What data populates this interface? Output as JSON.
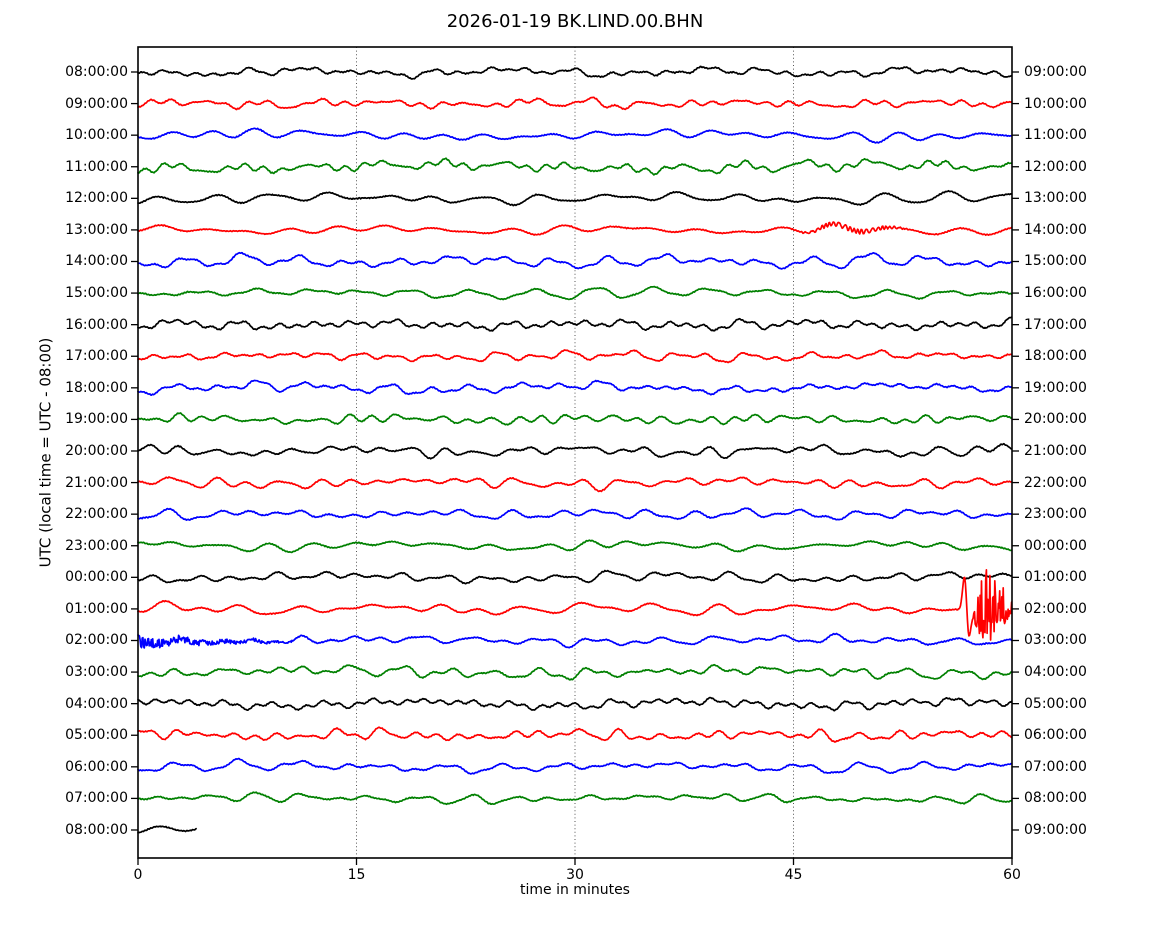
{
  "chart_data": {
    "type": "line",
    "subtype": "helicorder-dayplot",
    "title": "2026-01-19 BK.LIND.00.BHN",
    "xlabel": "time in minutes",
    "ylabel": "UTC (local time = UTC - 08:00)",
    "x_range_minutes": [
      0,
      60
    ],
    "x_ticks": [
      0,
      15,
      30,
      45,
      60
    ],
    "grid_minutes": [
      15,
      30,
      45
    ],
    "minutes_per_row": 60,
    "grid_style": "dotted",
    "legend": "none",
    "colors": {
      "trace_cycle": [
        "#000000",
        "#ff0000",
        "#0000ff",
        "#008000"
      ],
      "axis": "#000000",
      "grid": "#555555",
      "background": "#ffffff"
    },
    "rows": [
      {
        "utc_left": "08:00:00",
        "utc_right": "09:00:00",
        "color": "#000000",
        "events": []
      },
      {
        "utc_left": "09:00:00",
        "utc_right": "10:00:00",
        "color": "#ff0000",
        "events": []
      },
      {
        "utc_left": "10:00:00",
        "utc_right": "11:00:00",
        "color": "#0000ff",
        "events": []
      },
      {
        "utc_left": "11:00:00",
        "utc_right": "12:00:00",
        "color": "#008000",
        "events": []
      },
      {
        "utc_left": "12:00:00",
        "utc_right": "13:00:00",
        "color": "#000000",
        "events": []
      },
      {
        "utc_left": "13:00:00",
        "utc_right": "14:00:00",
        "color": "#ff0000",
        "events": [
          {
            "type": "tremor",
            "start_min": 45,
            "end_min": 53,
            "amp": 2.3
          }
        ]
      },
      {
        "utc_left": "14:00:00",
        "utc_right": "15:00:00",
        "color": "#0000ff",
        "events": []
      },
      {
        "utc_left": "15:00:00",
        "utc_right": "16:00:00",
        "color": "#008000",
        "events": []
      },
      {
        "utc_left": "16:00:00",
        "utc_right": "17:00:00",
        "color": "#000000",
        "events": []
      },
      {
        "utc_left": "17:00:00",
        "utc_right": "18:00:00",
        "color": "#ff0000",
        "events": []
      },
      {
        "utc_left": "18:00:00",
        "utc_right": "19:00:00",
        "color": "#0000ff",
        "events": []
      },
      {
        "utc_left": "19:00:00",
        "utc_right": "20:00:00",
        "color": "#008000",
        "events": []
      },
      {
        "utc_left": "20:00:00",
        "utc_right": "21:00:00",
        "color": "#000000",
        "events": []
      },
      {
        "utc_left": "21:00:00",
        "utc_right": "22:00:00",
        "color": "#ff0000",
        "events": []
      },
      {
        "utc_left": "22:00:00",
        "utc_right": "23:00:00",
        "color": "#0000ff",
        "events": []
      },
      {
        "utc_left": "23:00:00",
        "utc_right": "00:00:00",
        "color": "#008000",
        "events": []
      },
      {
        "utc_left": "00:00:00",
        "utc_right": "01:00:00",
        "color": "#000000",
        "events": []
      },
      {
        "utc_left": "01:00:00",
        "utc_right": "02:00:00",
        "color": "#ff0000",
        "events": [
          {
            "type": "earthquake",
            "precursor_min": 56.78,
            "onset_min": 57.2,
            "peak_min": 57.85,
            "end_min": 60,
            "peak_amp": 52
          }
        ]
      },
      {
        "utc_left": "02:00:00",
        "utc_right": "03:00:00",
        "color": "#0000ff",
        "events": [
          {
            "type": "coda",
            "start_min": 0,
            "end_min": 14,
            "start_amp": 5
          }
        ]
      },
      {
        "utc_left": "03:00:00",
        "utc_right": "04:00:00",
        "color": "#008000",
        "events": []
      },
      {
        "utc_left": "04:00:00",
        "utc_right": "05:00:00",
        "color": "#000000",
        "events": []
      },
      {
        "utc_left": "05:00:00",
        "utc_right": "06:00:00",
        "color": "#ff0000",
        "events": []
      },
      {
        "utc_left": "06:00:00",
        "utc_right": "07:00:00",
        "color": "#0000ff",
        "events": []
      },
      {
        "utc_left": "07:00:00",
        "utc_right": "08:00:00",
        "color": "#008000",
        "events": []
      },
      {
        "utc_left": "08:00:00",
        "utc_right": "09:00:00",
        "color": "#000000",
        "end_min": 4,
        "events": []
      }
    ]
  }
}
